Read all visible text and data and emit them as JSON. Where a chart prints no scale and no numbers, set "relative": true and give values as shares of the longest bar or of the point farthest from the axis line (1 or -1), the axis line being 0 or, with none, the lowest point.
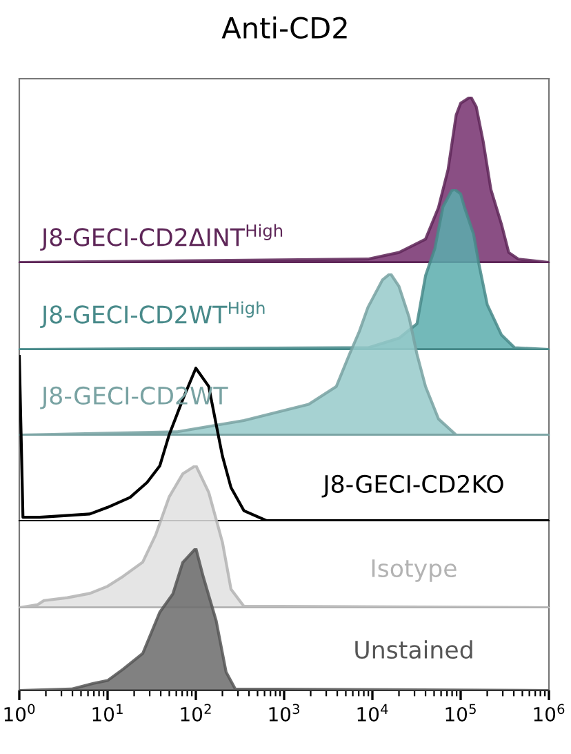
{
  "chart_data": [
    {
      "type": "area",
      "title": "Anti-CD2",
      "relative": true,
      "log": "x",
      "xlim": [
        1,
        1000000
      ],
      "tick_labels": false,
      "x": [
        1,
        8900,
        20000,
        40000,
        56000,
        72000,
        89000,
        100000,
        130000,
        150000,
        180000,
        220000,
        290000,
        350000,
        450000,
        1000000
      ],
      "series": [
        {
          "name": "J8-GECI-CD2ΔINT$^{High}$",
          "color": "#76306e",
          "values": [
            0,
            0.02,
            0.06,
            0.14,
            0.33,
            0.56,
            0.89,
            0.96,
            1,
            0.94,
            0.73,
            0.44,
            0.23,
            0.06,
            0.02,
            0
          ]
        }
      ]
    },
    {
      "type": "area",
      "relative": true,
      "log": "x",
      "xlim": [
        1,
        1000000
      ],
      "tick_labels": false,
      "x": [
        1,
        4500,
        8900,
        20000,
        32000,
        40000,
        51000,
        63000,
        79000,
        85000,
        100000,
        110000,
        140000,
        160000,
        200000,
        290000,
        410000,
        1000000
      ],
      "series": [
        {
          "name": "J8-GECI-CD2WT$^{High}$",
          "color": "#5aadad",
          "values": [
            0,
            0.01,
            0.01,
            0.07,
            0.16,
            0.46,
            0.63,
            0.89,
            0.99,
            1,
            0.97,
            0.89,
            0.72,
            0.54,
            0.28,
            0.09,
            0.01,
            0
          ]
        }
      ]
    },
    {
      "type": "area",
      "relative": true,
      "log": "x",
      "xlim": [
        1,
        1000000
      ],
      "tick_labels": false,
      "x": [
        1,
        62,
        350,
        1900,
        3900,
        5500,
        7100,
        8900,
        13000,
        16000,
        20000,
        26000,
        32000,
        40000,
        56000,
        89000,
        1000000
      ],
      "series": [
        {
          "name": "J8-GECI-CD2WT",
          "color": "#96caca",
          "values": [
            0,
            0.02,
            0.09,
            0.19,
            0.3,
            0.5,
            0.64,
            0.79,
            0.96,
            1,
            0.92,
            0.73,
            0.5,
            0.3,
            0.1,
            0,
            0
          ]
        }
      ]
    },
    {
      "type": "line",
      "relative": true,
      "log": "x",
      "xlim": [
        1,
        1000000
      ],
      "tick_labels": false,
      "x": [
        1,
        1.1,
        1.7,
        3.2,
        6.3,
        10,
        18,
        28,
        39,
        50,
        71,
        100,
        140,
        170,
        200,
        250,
        350,
        630,
        1000000
      ],
      "series": [
        {
          "name": "J8-GECI-CD2KO",
          "color": "#000000",
          "values": [
            1,
            0.02,
            0.02,
            0.03,
            0.04,
            0.08,
            0.14,
            0.23,
            0.33,
            0.52,
            0.73,
            0.92,
            0.81,
            0.58,
            0.39,
            0.2,
            0.06,
            0,
            0
          ]
        }
      ]
    },
    {
      "type": "area",
      "relative": true,
      "log": "x",
      "xlim": [
        1,
        1000000
      ],
      "tick_labels": false,
      "x": [
        1,
        1.6,
        1.9,
        3.5,
        6.3,
        10,
        15,
        25,
        35,
        50,
        71,
        100,
        140,
        200,
        250,
        350,
        1000000
      ],
      "series": [
        {
          "name": "Isotype",
          "color": "#e0e0e0",
          "values": [
            0,
            0.02,
            0.05,
            0.07,
            0.1,
            0.15,
            0.22,
            0.32,
            0.51,
            0.78,
            0.94,
            1,
            0.81,
            0.46,
            0.13,
            0.01,
            0
          ]
        }
      ]
    },
    {
      "type": "area",
      "relative": true,
      "log": "x",
      "xlim": [
        1,
        1000000
      ],
      "tick_labels": "x",
      "xticks": [
        {
          "value": 1,
          "label": "10$^{0}$"
        },
        {
          "value": 10,
          "label": "10$^{1}$"
        },
        {
          "value": 100,
          "label": "10$^{2}$"
        },
        {
          "value": 1000,
          "label": "10$^{3}$"
        },
        {
          "value": 10000,
          "label": "10$^{4}$"
        },
        {
          "value": 100000,
          "label": "10$^{5}$"
        },
        {
          "value": 1000000,
          "label": "10$^{6}$"
        }
      ],
      "x": [
        1,
        3.9,
        6.9,
        10,
        15,
        25,
        39,
        55,
        71,
        100,
        120,
        170,
        220,
        280,
        1000000
      ],
      "series": [
        {
          "name": "Unstained",
          "color": "#6b6b6b",
          "values": [
            0,
            0.01,
            0.05,
            0.07,
            0.15,
            0.26,
            0.55,
            0.68,
            0.9,
            1,
            0.81,
            0.49,
            0.13,
            0.01,
            0
          ]
        }
      ]
    }
  ]
}
